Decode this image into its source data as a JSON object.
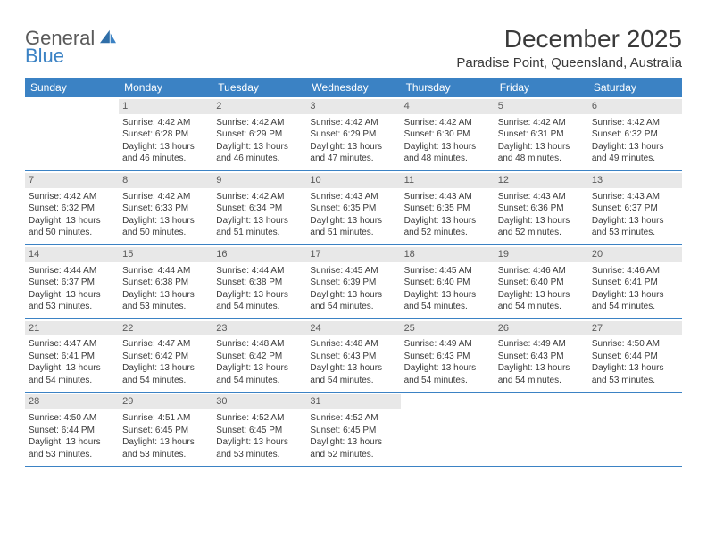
{
  "logo": {
    "text1": "General",
    "text2": "Blue"
  },
  "title": "December 2025",
  "location": "Paradise Point, Queensland, Australia",
  "colors": {
    "header_bg": "#3b82c4",
    "header_text": "#ffffff",
    "daynum_bg": "#e8e8e8",
    "daynum_text": "#5a5a5a",
    "body_text": "#3a3a3a",
    "border": "#3b82c4",
    "logo_gray": "#5a5a5a",
    "logo_blue": "#3b82c4"
  },
  "weekdays": [
    "Sunday",
    "Monday",
    "Tuesday",
    "Wednesday",
    "Thursday",
    "Friday",
    "Saturday"
  ],
  "weeks": [
    [
      {
        "day": "",
        "sunrise": "",
        "sunset": "",
        "daylight": ""
      },
      {
        "day": "1",
        "sunrise": "Sunrise: 4:42 AM",
        "sunset": "Sunset: 6:28 PM",
        "daylight": "Daylight: 13 hours and 46 minutes."
      },
      {
        "day": "2",
        "sunrise": "Sunrise: 4:42 AM",
        "sunset": "Sunset: 6:29 PM",
        "daylight": "Daylight: 13 hours and 46 minutes."
      },
      {
        "day": "3",
        "sunrise": "Sunrise: 4:42 AM",
        "sunset": "Sunset: 6:29 PM",
        "daylight": "Daylight: 13 hours and 47 minutes."
      },
      {
        "day": "4",
        "sunrise": "Sunrise: 4:42 AM",
        "sunset": "Sunset: 6:30 PM",
        "daylight": "Daylight: 13 hours and 48 minutes."
      },
      {
        "day": "5",
        "sunrise": "Sunrise: 4:42 AM",
        "sunset": "Sunset: 6:31 PM",
        "daylight": "Daylight: 13 hours and 48 minutes."
      },
      {
        "day": "6",
        "sunrise": "Sunrise: 4:42 AM",
        "sunset": "Sunset: 6:32 PM",
        "daylight": "Daylight: 13 hours and 49 minutes."
      }
    ],
    [
      {
        "day": "7",
        "sunrise": "Sunrise: 4:42 AM",
        "sunset": "Sunset: 6:32 PM",
        "daylight": "Daylight: 13 hours and 50 minutes."
      },
      {
        "day": "8",
        "sunrise": "Sunrise: 4:42 AM",
        "sunset": "Sunset: 6:33 PM",
        "daylight": "Daylight: 13 hours and 50 minutes."
      },
      {
        "day": "9",
        "sunrise": "Sunrise: 4:42 AM",
        "sunset": "Sunset: 6:34 PM",
        "daylight": "Daylight: 13 hours and 51 minutes."
      },
      {
        "day": "10",
        "sunrise": "Sunrise: 4:43 AM",
        "sunset": "Sunset: 6:35 PM",
        "daylight": "Daylight: 13 hours and 51 minutes."
      },
      {
        "day": "11",
        "sunrise": "Sunrise: 4:43 AM",
        "sunset": "Sunset: 6:35 PM",
        "daylight": "Daylight: 13 hours and 52 minutes."
      },
      {
        "day": "12",
        "sunrise": "Sunrise: 4:43 AM",
        "sunset": "Sunset: 6:36 PM",
        "daylight": "Daylight: 13 hours and 52 minutes."
      },
      {
        "day": "13",
        "sunrise": "Sunrise: 4:43 AM",
        "sunset": "Sunset: 6:37 PM",
        "daylight": "Daylight: 13 hours and 53 minutes."
      }
    ],
    [
      {
        "day": "14",
        "sunrise": "Sunrise: 4:44 AM",
        "sunset": "Sunset: 6:37 PM",
        "daylight": "Daylight: 13 hours and 53 minutes."
      },
      {
        "day": "15",
        "sunrise": "Sunrise: 4:44 AM",
        "sunset": "Sunset: 6:38 PM",
        "daylight": "Daylight: 13 hours and 53 minutes."
      },
      {
        "day": "16",
        "sunrise": "Sunrise: 4:44 AM",
        "sunset": "Sunset: 6:38 PM",
        "daylight": "Daylight: 13 hours and 54 minutes."
      },
      {
        "day": "17",
        "sunrise": "Sunrise: 4:45 AM",
        "sunset": "Sunset: 6:39 PM",
        "daylight": "Daylight: 13 hours and 54 minutes."
      },
      {
        "day": "18",
        "sunrise": "Sunrise: 4:45 AM",
        "sunset": "Sunset: 6:40 PM",
        "daylight": "Daylight: 13 hours and 54 minutes."
      },
      {
        "day": "19",
        "sunrise": "Sunrise: 4:46 AM",
        "sunset": "Sunset: 6:40 PM",
        "daylight": "Daylight: 13 hours and 54 minutes."
      },
      {
        "day": "20",
        "sunrise": "Sunrise: 4:46 AM",
        "sunset": "Sunset: 6:41 PM",
        "daylight": "Daylight: 13 hours and 54 minutes."
      }
    ],
    [
      {
        "day": "21",
        "sunrise": "Sunrise: 4:47 AM",
        "sunset": "Sunset: 6:41 PM",
        "daylight": "Daylight: 13 hours and 54 minutes."
      },
      {
        "day": "22",
        "sunrise": "Sunrise: 4:47 AM",
        "sunset": "Sunset: 6:42 PM",
        "daylight": "Daylight: 13 hours and 54 minutes."
      },
      {
        "day": "23",
        "sunrise": "Sunrise: 4:48 AM",
        "sunset": "Sunset: 6:42 PM",
        "daylight": "Daylight: 13 hours and 54 minutes."
      },
      {
        "day": "24",
        "sunrise": "Sunrise: 4:48 AM",
        "sunset": "Sunset: 6:43 PM",
        "daylight": "Daylight: 13 hours and 54 minutes."
      },
      {
        "day": "25",
        "sunrise": "Sunrise: 4:49 AM",
        "sunset": "Sunset: 6:43 PM",
        "daylight": "Daylight: 13 hours and 54 minutes."
      },
      {
        "day": "26",
        "sunrise": "Sunrise: 4:49 AM",
        "sunset": "Sunset: 6:43 PM",
        "daylight": "Daylight: 13 hours and 54 minutes."
      },
      {
        "day": "27",
        "sunrise": "Sunrise: 4:50 AM",
        "sunset": "Sunset: 6:44 PM",
        "daylight": "Daylight: 13 hours and 53 minutes."
      }
    ],
    [
      {
        "day": "28",
        "sunrise": "Sunrise: 4:50 AM",
        "sunset": "Sunset: 6:44 PM",
        "daylight": "Daylight: 13 hours and 53 minutes."
      },
      {
        "day": "29",
        "sunrise": "Sunrise: 4:51 AM",
        "sunset": "Sunset: 6:45 PM",
        "daylight": "Daylight: 13 hours and 53 minutes."
      },
      {
        "day": "30",
        "sunrise": "Sunrise: 4:52 AM",
        "sunset": "Sunset: 6:45 PM",
        "daylight": "Daylight: 13 hours and 53 minutes."
      },
      {
        "day": "31",
        "sunrise": "Sunrise: 4:52 AM",
        "sunset": "Sunset: 6:45 PM",
        "daylight": "Daylight: 13 hours and 52 minutes."
      },
      {
        "day": "",
        "sunrise": "",
        "sunset": "",
        "daylight": ""
      },
      {
        "day": "",
        "sunrise": "",
        "sunset": "",
        "daylight": ""
      },
      {
        "day": "",
        "sunrise": "",
        "sunset": "",
        "daylight": ""
      }
    ]
  ]
}
